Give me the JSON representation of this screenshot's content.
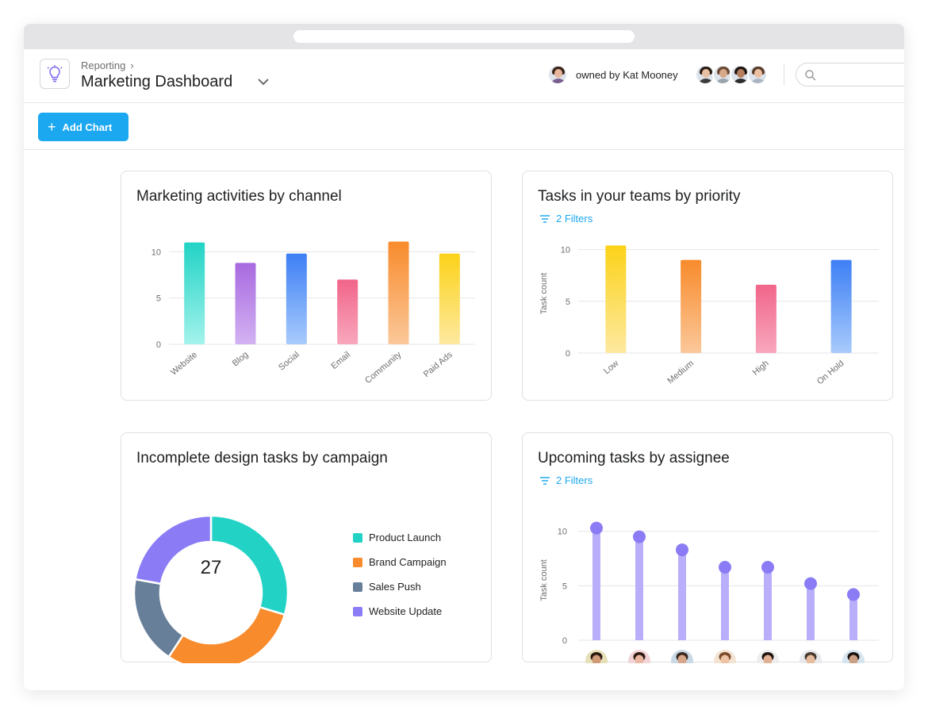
{
  "header": {
    "breadcrumb": "Reporting",
    "title": "Marketing Dashboard",
    "owner_text": "owned by Kat Mooney",
    "search_placeholder": ""
  },
  "toolbar": {
    "add_chart_label": "Add Chart"
  },
  "colors": {
    "accent": "#1ca8f0",
    "gridline": "#e6e6e8"
  },
  "cards": {
    "channel": {
      "title": "Marketing activities by channel",
      "chart_data": {
        "type": "bar",
        "categories": [
          "Website",
          "Blog",
          "Social",
          "Email",
          "Community",
          "Paid Ads"
        ],
        "values": [
          11,
          8.8,
          9.8,
          7,
          11.1,
          9.8
        ],
        "colors": [
          [
            "#22d3c5",
            "#a3f3ec"
          ],
          [
            "#a86ae0",
            "#d3b2f2"
          ],
          [
            "#3d7ff5",
            "#a9cbfc"
          ],
          [
            "#f1658a",
            "#f8a7bd"
          ],
          [
            "#f88b2c",
            "#fbc89a"
          ],
          [
            "#fcd219",
            "#fde9a0"
          ]
        ],
        "yticks": [
          0,
          5,
          10
        ],
        "ylim": [
          0,
          12
        ],
        "ylabel": ""
      }
    },
    "priority": {
      "title": "Tasks in your teams by priority",
      "filters_label": "2 Filters",
      "chart_data": {
        "type": "bar",
        "categories": [
          "Low",
          "Medium",
          "High",
          "On Hold"
        ],
        "values": [
          10.4,
          9,
          6.6,
          9
        ],
        "colors": [
          [
            "#fcd219",
            "#fde9a0"
          ],
          [
            "#f88b2c",
            "#fbc89a"
          ],
          [
            "#f1658a",
            "#f8a7bd"
          ],
          [
            "#3d7ff5",
            "#a9cbfc"
          ]
        ],
        "yticks": [
          0,
          5,
          10
        ],
        "ylim": [
          0,
          11.5
        ],
        "ylabel": "Task count"
      }
    },
    "campaign": {
      "title": "Incomplete design tasks by campaign",
      "center_value": "27",
      "chart_data": {
        "type": "pie",
        "labels": [
          "Product Launch",
          "Brand Campaign",
          "Sales Push",
          "Website Update"
        ],
        "values": [
          8,
          8,
          5,
          6
        ],
        "colors": [
          "#22d3c5",
          "#f88b2c",
          "#677f99",
          "#8b7cf6"
        ]
      }
    },
    "assignee": {
      "title": "Upcoming tasks by assignee",
      "filters_label": "2 Filters",
      "chart_data": {
        "type": "bar",
        "categories": [
          "",
          "",
          "",
          "",
          "",
          "",
          ""
        ],
        "values": [
          10.3,
          9.5,
          8.3,
          6.7,
          6.7,
          5.2,
          4.2
        ],
        "color": "#b9aef9",
        "dot_color": "#8b7cf6",
        "yticks": [
          0,
          5,
          10
        ],
        "ylim": [
          0,
          11
        ],
        "ylabel": "Task count"
      }
    }
  },
  "avatars": {
    "owner": {
      "skin": "#e6b79c",
      "hair": "#3a2418",
      "shirt": "#7a5d8f"
    },
    "members": [
      {
        "skin": "#e8c1a5",
        "hair": "#2b1d14",
        "shirt": "#3c3c3c"
      },
      {
        "skin": "#d8a88a",
        "hair": "#6b4a35",
        "shirt": "#9aa4ae"
      },
      {
        "skin": "#b57e5c",
        "hair": "#1d1511",
        "shirt": "#2d2d2d"
      },
      {
        "skin": "#eac0a3",
        "hair": "#5a3b26",
        "shirt": "#a9b6c2"
      }
    ],
    "assignees": [
      {
        "skin": "#cf9a78",
        "hair": "#2a1a12",
        "shirt": "#2e5f3a",
        "bg": "#e6e0b8"
      },
      {
        "skin": "#eab8a2",
        "hair": "#2a1a12",
        "shirt": "#b03045",
        "bg": "#f1d4d8"
      },
      {
        "skin": "#d6a689",
        "hair": "#3b2a22",
        "shirt": "#587085",
        "bg": "#c9d9e6"
      },
      {
        "skin": "#eec2a4",
        "hair": "#7a4a2a",
        "shirt": "#d7c9b8",
        "bg": "#f3e3d3"
      },
      {
        "skin": "#e2b193",
        "hair": "#1f1612",
        "shirt": "#2d2d2d",
        "bg": "#eeeeee"
      },
      {
        "skin": "#e6bc9e",
        "hair": "#4a3a30",
        "shirt": "#6c7480",
        "bg": "#e7e9ec"
      },
      {
        "skin": "#caa084",
        "hair": "#1c1410",
        "shirt": "#5f7c95",
        "bg": "#d6e5ef"
      }
    ]
  }
}
